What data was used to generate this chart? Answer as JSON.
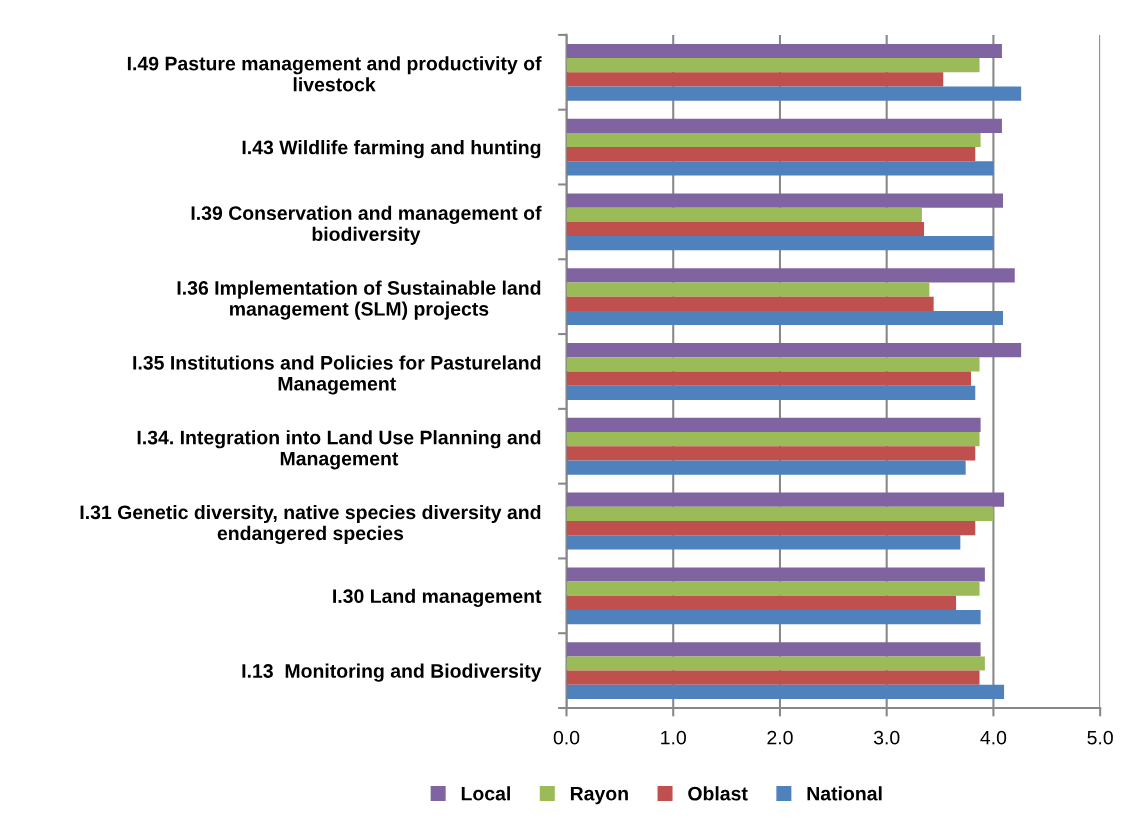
{
  "chart_data": {
    "type": "bar",
    "orientation": "horizontal",
    "categories": [
      "I.49 Pasture management and productivity of\nlivestock",
      "I.43 Wildlife farming and hunting",
      "I.39 Conservation and management of\nbiodiversity",
      "I.36 Implementation of Sustainable land\nmanagement (SLM) projects",
      "I.35 Institutions and Policies for Pastureland\nManagement",
      "I.34. Integration into Land Use Planning and\nManagement",
      "I.31 Genetic diversity, native species diversity and\nendangered species",
      "I.30 Land management",
      "I.13  Monitoring and Biodiversity"
    ],
    "series": [
      {
        "name": "Local",
        "color": "#8064a2",
        "values": [
          4.08,
          4.08,
          4.09,
          4.2,
          4.26,
          3.88,
          4.1,
          3.92,
          3.88
        ]
      },
      {
        "name": "Rayon",
        "color": "#9bbb59",
        "values": [
          3.87,
          3.88,
          3.33,
          3.4,
          3.87,
          3.87,
          4.0,
          3.87,
          3.92
        ]
      },
      {
        "name": "Oblast",
        "color": "#c0504d",
        "values": [
          3.53,
          3.83,
          3.35,
          3.44,
          3.79,
          3.83,
          3.83,
          3.65,
          3.87
        ]
      },
      {
        "name": "National",
        "color": "#4f81bd",
        "values": [
          4.26,
          4.0,
          4.0,
          4.09,
          3.83,
          3.74,
          3.69,
          3.88,
          4.1
        ]
      }
    ],
    "xlim": [
      0,
      5
    ],
    "xticks": [
      {
        "value": 0,
        "label": "0.0"
      },
      {
        "value": 1,
        "label": "1.0"
      },
      {
        "value": 2,
        "label": "2.0"
      },
      {
        "value": 3,
        "label": "3.0"
      },
      {
        "value": 4,
        "label": "4.0"
      },
      {
        "value": 5,
        "label": "5.0"
      }
    ],
    "grid": "x",
    "legend": "bottom"
  }
}
